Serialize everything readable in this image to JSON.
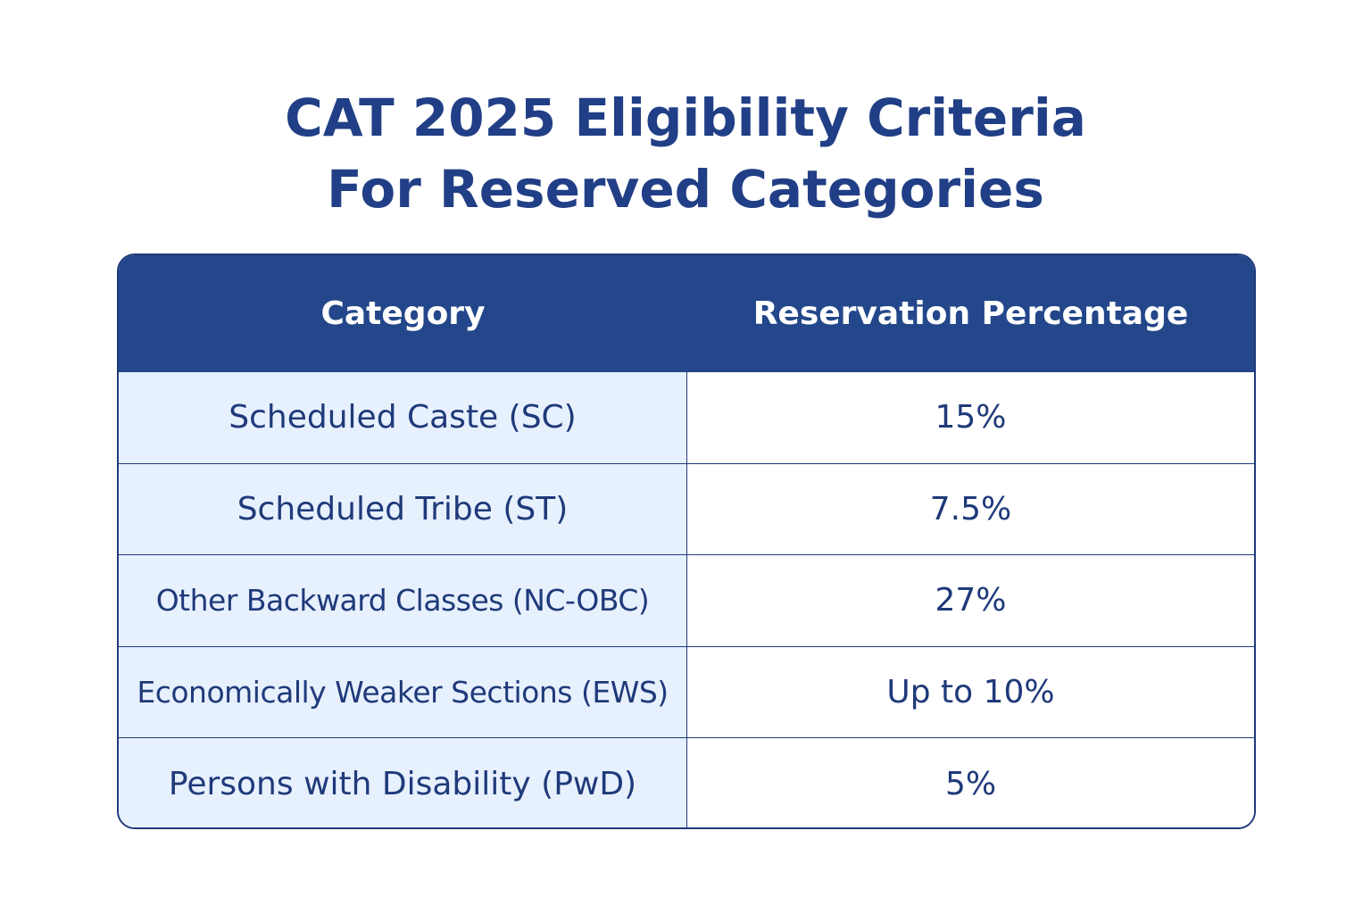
{
  "title": {
    "line1": "CAT 2025 Eligibility Criteria",
    "line2": "For Reserved Categories"
  },
  "table": {
    "headers": {
      "category": "Category",
      "percentage": "Reservation Percentage"
    },
    "rows": [
      {
        "category": "Scheduled Caste (SC)",
        "percentage": "15%"
      },
      {
        "category": "Scheduled Tribe (ST)",
        "percentage": "7.5%"
      },
      {
        "category": "Other Backward Classes (NC-OBC)",
        "percentage": "27%"
      },
      {
        "category": "Economically Weaker Sections (EWS)",
        "percentage": "Up to 10%"
      },
      {
        "category": "Persons with Disability (PwD)",
        "percentage": "5%"
      }
    ]
  },
  "colors": {
    "title": "#213f86",
    "header_bg": "#23478a",
    "header_text": "#ffffff",
    "left_column_bg": "#e7f0fd",
    "cell_text": "#1f3a7a",
    "border": "#1f3a7a"
  }
}
